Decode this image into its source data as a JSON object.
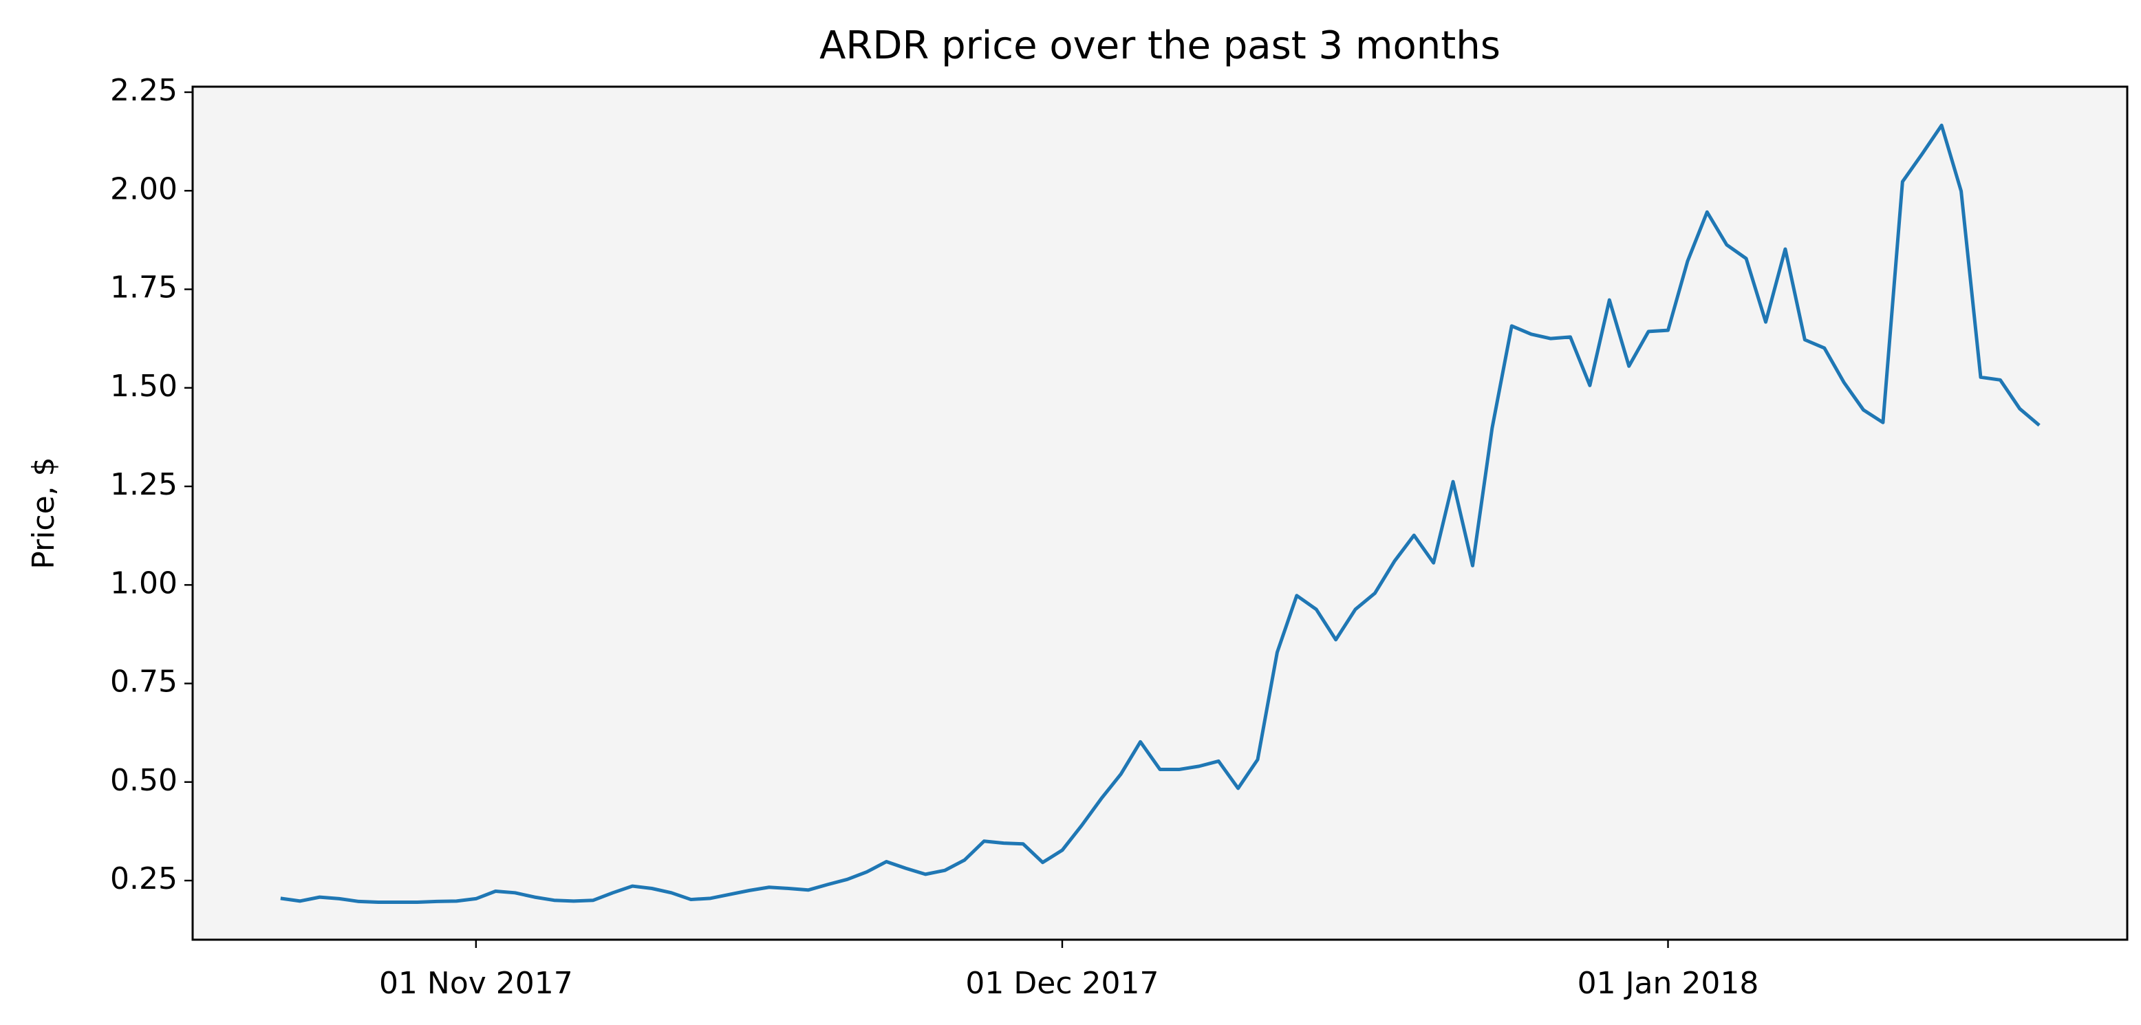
{
  "chart_data": {
    "type": "line",
    "title": "ARDR price over the past 3 months",
    "ylabel": "Price, $",
    "color": "#1f77b4",
    "background": "#f4f4f4",
    "x": [
      "2017-10-22",
      "2017-10-23",
      "2017-10-24",
      "2017-10-25",
      "2017-10-26",
      "2017-10-27",
      "2017-10-28",
      "2017-10-29",
      "2017-10-30",
      "2017-10-31",
      "2017-11-01",
      "2017-11-02",
      "2017-11-03",
      "2017-11-04",
      "2017-11-05",
      "2017-11-06",
      "2017-11-07",
      "2017-11-08",
      "2017-11-09",
      "2017-11-10",
      "2017-11-11",
      "2017-11-12",
      "2017-11-13",
      "2017-11-14",
      "2017-11-15",
      "2017-11-16",
      "2017-11-17",
      "2017-11-18",
      "2017-11-19",
      "2017-11-20",
      "2017-11-21",
      "2017-11-22",
      "2017-11-23",
      "2017-11-24",
      "2017-11-25",
      "2017-11-26",
      "2017-11-27",
      "2017-11-28",
      "2017-11-29",
      "2017-11-30",
      "2017-12-01",
      "2017-12-02",
      "2017-12-03",
      "2017-12-04",
      "2017-12-05",
      "2017-12-06",
      "2017-12-07",
      "2017-12-08",
      "2017-12-09",
      "2017-12-10",
      "2017-12-11",
      "2017-12-12",
      "2017-12-13",
      "2017-12-14",
      "2017-12-15",
      "2017-12-16",
      "2017-12-17",
      "2017-12-18",
      "2017-12-19",
      "2017-12-20",
      "2017-12-21",
      "2017-12-22",
      "2017-12-23",
      "2017-12-24",
      "2017-12-25",
      "2017-12-26",
      "2017-12-27",
      "2017-12-28",
      "2017-12-29",
      "2017-12-30",
      "2017-12-31",
      "2018-01-01",
      "2018-01-02",
      "2018-01-03",
      "2018-01-04",
      "2018-01-05",
      "2018-01-06",
      "2018-01-07",
      "2018-01-08",
      "2018-01-09",
      "2018-01-10",
      "2018-01-11",
      "2018-01-12",
      "2018-01-13",
      "2018-01-14",
      "2018-01-15",
      "2018-01-16",
      "2018-01-17",
      "2018-01-18",
      "2018-01-19",
      "2018-01-20"
    ],
    "values": [
      0.205,
      0.198,
      0.208,
      0.204,
      0.197,
      0.195,
      0.195,
      0.195,
      0.197,
      0.198,
      0.204,
      0.223,
      0.219,
      0.208,
      0.2,
      0.198,
      0.2,
      0.219,
      0.236,
      0.23,
      0.219,
      0.202,
      0.205,
      0.215,
      0.225,
      0.233,
      0.23,
      0.226,
      0.24,
      0.253,
      0.272,
      0.298,
      0.281,
      0.266,
      0.276,
      0.302,
      0.35,
      0.345,
      0.343,
      0.296,
      0.327,
      0.39,
      0.458,
      0.52,
      0.602,
      0.532,
      0.532,
      0.54,
      0.553,
      0.484,
      0.557,
      0.829,
      0.973,
      0.938,
      0.861,
      0.938,
      0.979,
      1.06,
      1.126,
      1.056,
      1.262,
      1.049,
      1.398,
      1.657,
      1.636,
      1.625,
      1.629,
      1.506,
      1.723,
      1.555,
      1.643,
      1.646,
      1.821,
      1.946,
      1.863,
      1.828,
      1.667,
      1.852,
      1.622,
      1.601,
      1.514,
      1.444,
      1.412,
      2.023,
      2.093,
      2.166,
      1.999,
      1.527,
      1.52,
      1.447,
      1.405
    ],
    "xlim": [
      "2017-10-17T12:00",
      "2018-01-24T12:00"
    ],
    "xticks": [
      {
        "value": "2017-11-01",
        "label": "01 Nov 2017"
      },
      {
        "value": "2017-12-01",
        "label": "01 Dec 2017"
      },
      {
        "value": "2018-01-01",
        "label": "01 Jan 2018"
      }
    ],
    "ylim": [
      0.1,
      2.264
    ],
    "yticks": [
      {
        "value": 0.25,
        "label": "0.25"
      },
      {
        "value": 0.5,
        "label": "0.50"
      },
      {
        "value": 0.75,
        "label": "0.75"
      },
      {
        "value": 1,
        "label": "1.00"
      },
      {
        "value": 1.25,
        "label": "1.25"
      },
      {
        "value": 1.5,
        "label": "1.50"
      },
      {
        "value": 1.75,
        "label": "1.75"
      },
      {
        "value": 2,
        "label": "2.00"
      },
      {
        "value": 2.25,
        "label": "2.25"
      }
    ]
  }
}
